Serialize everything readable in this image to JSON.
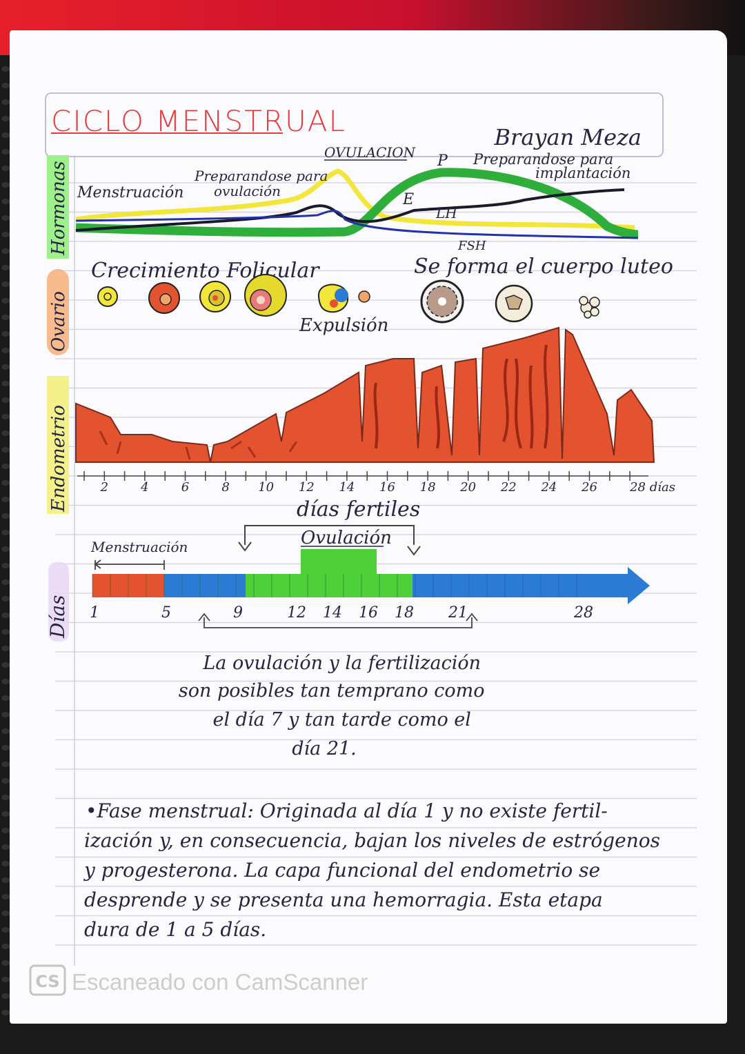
{
  "title": "CICLO MENSTRUAL",
  "author": "Brayan Meza",
  "colors": {
    "red": "#e4532f",
    "blue": "#2b7bd4",
    "green": "#4fcf3a",
    "yellow": "#f2e63a",
    "hormone_green": "#2fae3c",
    "hormone_blue": "#2233a8",
    "hormone_black": "#1a1a2a",
    "highlight_green": "#9ef08a",
    "highlight_orange": "#f5a56a",
    "highlight_yellow": "#f4f08a"
  },
  "sections": {
    "hormones": "Hormonas",
    "ovary": "Ovario",
    "endometrium": "Endometrio",
    "days": "Días"
  },
  "hormone_panel": {
    "menstruation": "Menstruación",
    "prep_ovulation": "Preparandose para ovulación",
    "ovulation": "OVULACION",
    "p": "P",
    "prep_implantation": "Preparandose para implantación",
    "e": "E",
    "lh": "LH",
    "fsh": "FSH"
  },
  "ovary_panel": {
    "follicular_growth": "Crecimiento Folicular",
    "corpus_luteum": "Se forma el cuerpo luteo",
    "expulsion": "Expulsión"
  },
  "endometrium_axis": {
    "ticks": [
      "2",
      "4",
      "6",
      "8",
      "10",
      "12",
      "14",
      "16",
      "18",
      "20",
      "22",
      "24",
      "26",
      "28 días"
    ]
  },
  "days_panel": {
    "fertile_days": "días fertiles",
    "ovulation": "Ovulación",
    "menstruation": "Menstruación",
    "labels": [
      "1",
      "5",
      "9",
      "12",
      "14",
      "16",
      "18",
      "21",
      "28"
    ]
  },
  "note": {
    "lines": [
      "La ovulación y la fertilización",
      "son posibles tan temprano como",
      "el día 7 y tan tarde como el",
      "día 21."
    ]
  },
  "phase": {
    "lines": [
      "•Fase menstrual: Originada al día 1 y no existe fertil-",
      "ización y, en consecuencia, bajan los niveles de estrógenos",
      "y progesterona. La capa funcional del endometrio se",
      "desprende y se presenta una hemorragia. Esta etapa",
      "dura de 1 a 5 días."
    ]
  },
  "watermark": {
    "badge": "CS",
    "text": "Escaneado con CamScanner"
  }
}
